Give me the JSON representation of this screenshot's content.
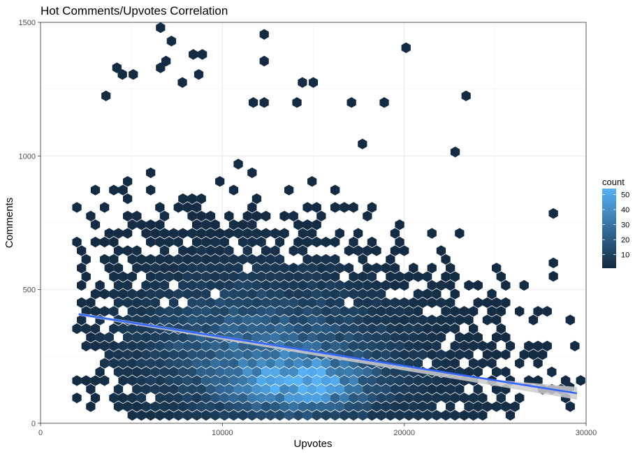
{
  "chart_data": {
    "type": "scatter",
    "subtype": "hexbin",
    "title": "Hot Comments/Upvotes Correlation",
    "xlabel": "Upvotes",
    "ylabel": "Comments",
    "xlim": [
      0,
      30000
    ],
    "ylim": [
      0,
      1500
    ],
    "x_ticks": [
      0,
      10000,
      20000,
      30000
    ],
    "y_ticks": [
      0,
      500,
      1000,
      1500
    ],
    "grid": true,
    "legend": {
      "title": "count",
      "placement": "right",
      "range": [
        1,
        54
      ],
      "ticks": [
        10,
        20,
        30,
        40,
        50
      ],
      "low_color": "#132B43",
      "high_color": "#56B1F7"
    },
    "trend_line": {
      "method": "linear regression",
      "color": "#3366FF",
      "ribbon_color": "#cccccc",
      "x": [
        2100,
        29500
      ],
      "y": [
        408,
        112
      ]
    },
    "hexbin": {
      "x_range": [
        2000,
        29500
      ],
      "y_range": [
        30,
        1480
      ],
      "dense_region_center": [
        14500,
        150
      ],
      "outliers": [
        [
          6600,
          1480
        ],
        [
          12300,
          1455
        ],
        [
          7200,
          1430
        ],
        [
          20100,
          1405
        ],
        [
          8400,
          1380
        ],
        [
          8900,
          1380
        ],
        [
          6900,
          1355
        ],
        [
          12300,
          1355
        ],
        [
          4200,
          1330
        ],
        [
          6600,
          1330
        ],
        [
          4500,
          1305
        ],
        [
          5100,
          1305
        ],
        [
          8700,
          1305
        ],
        [
          7800,
          1275
        ],
        [
          14400,
          1275
        ],
        [
          15000,
          1275
        ],
        [
          3600,
          1225
        ],
        [
          23400,
          1225
        ],
        [
          11700,
          1200
        ],
        [
          12300,
          1200
        ],
        [
          14100,
          1200
        ],
        [
          17100,
          1200
        ],
        [
          18900,
          1200
        ],
        [
          17700,
          1045
        ],
        [
          22800,
          1015
        ],
        [
          28200,
          785
        ],
        [
          28200,
          600
        ],
        [
          28200,
          550
        ],
        [
          29700,
          160
        ],
        [
          29100,
          135
        ]
      ]
    }
  }
}
